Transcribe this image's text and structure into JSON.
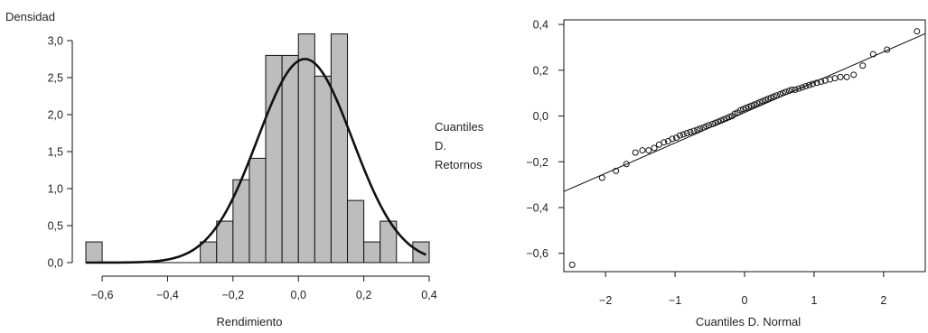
{
  "chart_data": [
    {
      "type": "histogram",
      "ylabel": "Densidad",
      "xlabel": "Rendimiento",
      "xlim": [
        -0.65,
        0.4
      ],
      "ylim": [
        0,
        3.0
      ],
      "x_ticks": [
        "−0,6",
        "−0,4",
        "−0,2",
        "0,0",
        "0,2",
        "0,4"
      ],
      "x_tick_values": [
        -0.6,
        -0.4,
        -0.2,
        0.0,
        0.2,
        0.4
      ],
      "y_ticks": [
        "0,0",
        "0,5",
        "1,0",
        "1,5",
        "2,0",
        "2,5",
        "3,0"
      ],
      "y_tick_values": [
        0,
        0.5,
        1.0,
        1.5,
        2.0,
        2.5,
        3.0
      ],
      "bin_edges": [
        -0.65,
        -0.6,
        -0.55,
        -0.5,
        -0.45,
        -0.4,
        -0.35,
        -0.3,
        -0.25,
        -0.2,
        -0.15,
        -0.1,
        -0.05,
        0.0,
        0.05,
        0.1,
        0.15,
        0.2,
        0.25,
        0.3,
        0.35,
        0.4
      ],
      "values": [
        0.28,
        0,
        0,
        0,
        0,
        0,
        0,
        0.28,
        0.56,
        1.12,
        1.41,
        2.8,
        2.8,
        3.09,
        2.52,
        3.09,
        0.84,
        0.28,
        0.56,
        0,
        0.28
      ],
      "bar_color": "#bdbdbd",
      "density_curve": {
        "mean": 0.02,
        "sd": 0.145,
        "range": [
          -0.65,
          0.39
        ],
        "color": "#111111"
      },
      "grid": false
    },
    {
      "type": "scatter",
      "ylabel_lines": [
        "Cuantiles",
        "D.",
        "Retornos"
      ],
      "xlabel": "Cuantiles D. Normal",
      "xlim": [
        -2.6,
        2.6
      ],
      "ylim": [
        -0.68,
        0.42
      ],
      "x_ticks": [
        "−2",
        "−1",
        "0",
        "1",
        "2"
      ],
      "x_tick_values": [
        -2,
        -1,
        0,
        1,
        2
      ],
      "y_ticks": [
        "−0,6",
        "−0,4",
        "−0,2",
        "0,0",
        "0,2",
        "0,4"
      ],
      "y_tick_values": [
        -0.6,
        -0.4,
        -0.2,
        0.0,
        0.2,
        0.4
      ],
      "points": [
        [
          -2.48,
          -0.65
        ],
        [
          -2.05,
          -0.27
        ],
        [
          -1.85,
          -0.24
        ],
        [
          -1.7,
          -0.21
        ],
        [
          -1.57,
          -0.16
        ],
        [
          -1.47,
          -0.15
        ],
        [
          -1.38,
          -0.15
        ],
        [
          -1.3,
          -0.14
        ],
        [
          -1.23,
          -0.125
        ],
        [
          -1.16,
          -0.115
        ],
        [
          -1.1,
          -0.11
        ],
        [
          -1.04,
          -0.1
        ],
        [
          -0.98,
          -0.095
        ],
        [
          -0.93,
          -0.085
        ],
        [
          -0.88,
          -0.08
        ],
        [
          -0.83,
          -0.075
        ],
        [
          -0.78,
          -0.07
        ],
        [
          -0.73,
          -0.065
        ],
        [
          -0.68,
          -0.06
        ],
        [
          -0.64,
          -0.055
        ],
        [
          -0.59,
          -0.05
        ],
        [
          -0.55,
          -0.045
        ],
        [
          -0.51,
          -0.04
        ],
        [
          -0.46,
          -0.035
        ],
        [
          -0.42,
          -0.03
        ],
        [
          -0.38,
          -0.025
        ],
        [
          -0.34,
          -0.02
        ],
        [
          -0.3,
          -0.015
        ],
        [
          -0.26,
          -0.01
        ],
        [
          -0.22,
          -0.005
        ],
        [
          -0.18,
          0.0
        ],
        [
          -0.14,
          0.01
        ],
        [
          -0.1,
          0.015
        ],
        [
          -0.06,
          0.025
        ],
        [
          -0.02,
          0.03
        ],
        [
          0.02,
          0.035
        ],
        [
          0.06,
          0.04
        ],
        [
          0.1,
          0.045
        ],
        [
          0.14,
          0.05
        ],
        [
          0.18,
          0.055
        ],
        [
          0.22,
          0.06
        ],
        [
          0.26,
          0.065
        ],
        [
          0.3,
          0.07
        ],
        [
          0.34,
          0.075
        ],
        [
          0.38,
          0.08
        ],
        [
          0.42,
          0.085
        ],
        [
          0.46,
          0.09
        ],
        [
          0.51,
          0.095
        ],
        [
          0.55,
          0.1
        ],
        [
          0.59,
          0.105
        ],
        [
          0.64,
          0.11
        ],
        [
          0.68,
          0.115
        ],
        [
          0.73,
          0.115
        ],
        [
          0.78,
          0.12
        ],
        [
          0.83,
          0.125
        ],
        [
          0.88,
          0.13
        ],
        [
          0.93,
          0.135
        ],
        [
          0.98,
          0.14
        ],
        [
          1.04,
          0.145
        ],
        [
          1.1,
          0.15
        ],
        [
          1.16,
          0.155
        ],
        [
          1.23,
          0.16
        ],
        [
          1.3,
          0.165
        ],
        [
          1.38,
          0.17
        ],
        [
          1.47,
          0.17
        ],
        [
          1.57,
          0.18
        ],
        [
          1.7,
          0.22
        ],
        [
          1.85,
          0.27
        ],
        [
          2.05,
          0.29
        ],
        [
          2.48,
          0.37
        ]
      ],
      "ref_line": {
        "x": [
          -2.6,
          2.6
        ],
        "y": [
          -0.33,
          0.36
        ]
      },
      "grid": false
    }
  ]
}
